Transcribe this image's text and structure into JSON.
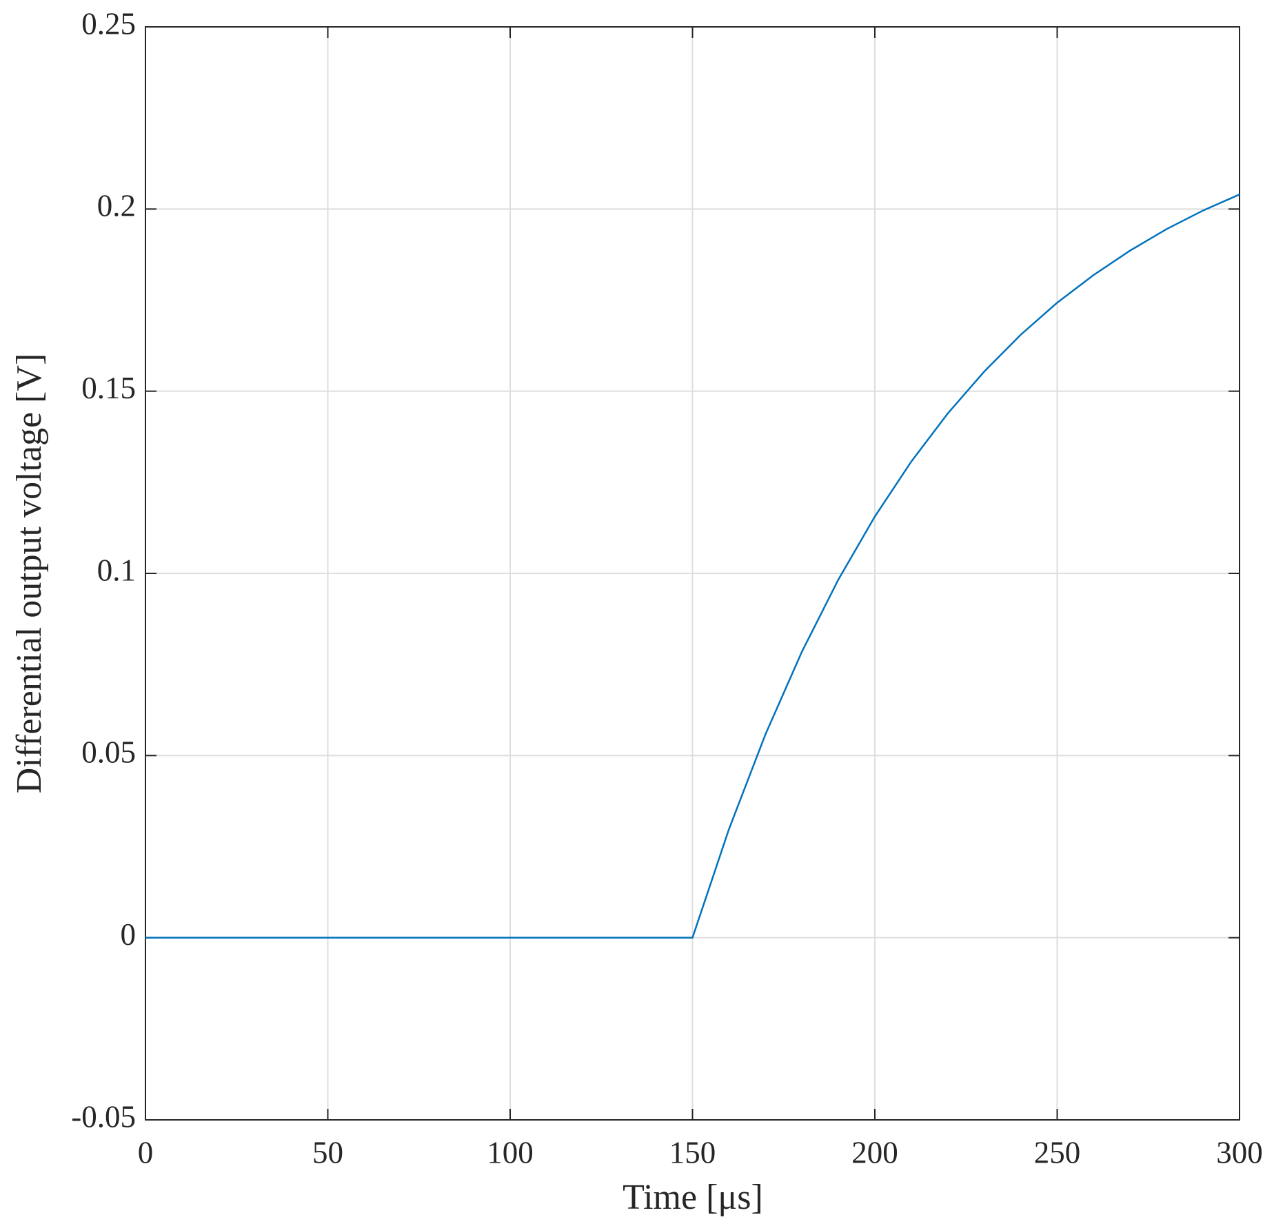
{
  "chart_data": {
    "type": "line",
    "xlabel": "Time [μs]",
    "ylabel": "Differential output voltage [V]",
    "x": [
      0,
      150,
      160,
      170,
      180,
      190,
      200,
      210,
      220,
      230,
      240,
      250,
      260,
      270,
      280,
      290,
      300
    ],
    "series": [
      {
        "color": "#0072bd",
        "values": [
          0,
          0,
          0.0298,
          0.0558,
          0.0785,
          0.0983,
          0.1156,
          0.1307,
          0.1439,
          0.1554,
          0.1655,
          0.1743,
          0.1819,
          0.1886,
          0.1945,
          0.1996,
          0.204
        ]
      }
    ],
    "xlim": [
      0,
      300
    ],
    "xticks": [
      0,
      50,
      100,
      150,
      200,
      250,
      300
    ],
    "ylim": [
      -0.05,
      0.25
    ],
    "yticks": [
      -0.05,
      0,
      0.05,
      0.1,
      0.15,
      0.2,
      0.25
    ],
    "grid": true
  }
}
